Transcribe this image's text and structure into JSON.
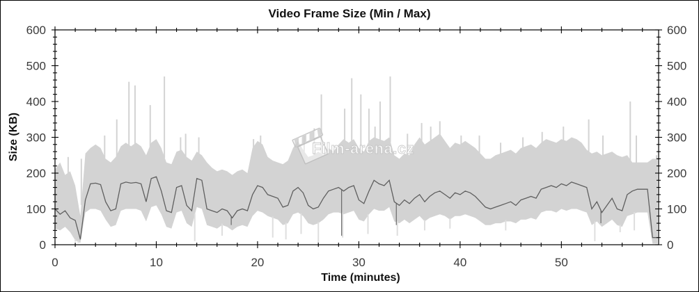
{
  "title": "Video Frame Size (Min / Max)",
  "watermark": {
    "text": "Film-arena.cz",
    "icon": "clapperboard-icon"
  },
  "colors": {
    "band": "#d3d3d3",
    "min_needle": "#dedede",
    "avg_line": "#5f5f5f",
    "axis": "#000000",
    "tick_label": "#3a3a3a",
    "watermark_stroke": "#c3c3c3"
  },
  "chart_data": {
    "type": "area",
    "title": "Video Frame Size (Min / Max)",
    "xlabel": "Time (minutes)",
    "ylabel": "Size (KB)",
    "xlim": [
      0,
      59.6
    ],
    "ylim": [
      0,
      600
    ],
    "x_major_ticks": [
      0,
      10,
      20,
      30,
      40,
      50
    ],
    "x_minor_step": 2,
    "y_major_ticks": [
      0,
      100,
      200,
      300,
      400,
      500,
      600
    ],
    "y_minor_step": 20,
    "grid": false,
    "legend": "none",
    "x": {
      "start": 0,
      "step": 0.5,
      "count": 120
    },
    "series": [
      {
        "name": "min",
        "values": [
          45,
          40,
          50,
          35,
          12,
          5,
          90,
          100,
          100,
          95,
          70,
          50,
          55,
          95,
          100,
          100,
          100,
          95,
          65,
          105,
          110,
          85,
          50,
          45,
          90,
          95,
          60,
          50,
          105,
          100,
          55,
          50,
          45,
          55,
          50,
          40,
          50,
          55,
          50,
          80,
          95,
          90,
          80,
          75,
          70,
          55,
          60,
          85,
          90,
          80,
          60,
          55,
          60,
          70,
          85,
          90,
          90,
          85,
          90,
          95,
          70,
          65,
          85,
          100,
          95,
          95,
          105,
          65,
          60,
          70,
          60,
          70,
          80,
          65,
          75,
          80,
          85,
          80,
          70,
          80,
          80,
          85,
          80,
          75,
          65,
          55,
          55,
          60,
          60,
          65,
          65,
          60,
          70,
          70,
          75,
          70,
          90,
          95,
          95,
          90,
          100,
          95,
          100,
          100,
          95,
          90,
          55,
          65,
          50,
          60,
          70,
          55,
          50,
          80,
          85,
          90,
          90,
          90,
          3,
          3
        ]
      },
      {
        "name": "avg",
        "values": [
          100,
          85,
          95,
          75,
          68,
          15,
          125,
          170,
          172,
          168,
          120,
          95,
          100,
          170,
          175,
          172,
          174,
          170,
          120,
          185,
          190,
          150,
          95,
          90,
          160,
          165,
          110,
          95,
          185,
          180,
          100,
          95,
          90,
          100,
          95,
          75,
          95,
          100,
          95,
          140,
          165,
          160,
          140,
          135,
          130,
          105,
          110,
          150,
          160,
          145,
          110,
          100,
          105,
          130,
          150,
          155,
          160,
          150,
          160,
          165,
          125,
          115,
          150,
          180,
          170,
          165,
          180,
          120,
          110,
          125,
          115,
          130,
          140,
          120,
          135,
          145,
          150,
          140,
          130,
          145,
          140,
          150,
          145,
          135,
          120,
          105,
          100,
          105,
          110,
          115,
          120,
          110,
          125,
          130,
          135,
          130,
          155,
          160,
          165,
          160,
          170,
          165,
          175,
          170,
          165,
          160,
          100,
          120,
          90,
          110,
          130,
          100,
          95,
          140,
          150,
          155,
          155,
          155,
          20,
          20
        ]
      },
      {
        "name": "max",
        "values": [
          210,
          230,
          195,
          205,
          165,
          80,
          255,
          270,
          280,
          270,
          240,
          230,
          245,
          275,
          285,
          275,
          285,
          275,
          250,
          285,
          295,
          270,
          230,
          225,
          260,
          265,
          245,
          235,
          260,
          250,
          230,
          215,
          205,
          210,
          205,
          195,
          205,
          210,
          200,
          270,
          290,
          280,
          245,
          235,
          230,
          225,
          235,
          270,
          290,
          265,
          245,
          250,
          260,
          250,
          270,
          260,
          280,
          295,
          285,
          295,
          270,
          260,
          290,
          300,
          295,
          290,
          300,
          250,
          240,
          255,
          250,
          280,
          300,
          280,
          290,
          300,
          310,
          290,
          270,
          285,
          280,
          290,
          280,
          270,
          255,
          240,
          240,
          250,
          255,
          260,
          265,
          255,
          270,
          275,
          280,
          270,
          285,
          295,
          290,
          285,
          295,
          290,
          300,
          295,
          285,
          265,
          255,
          260,
          250,
          255,
          260,
          250,
          245,
          250,
          230,
          230,
          230,
          230,
          240,
          240
        ]
      }
    ],
    "max_spikes": [
      [
        1.3,
        245
      ],
      [
        2.6,
        240
      ],
      [
        4.9,
        305
      ],
      [
        6.1,
        350
      ],
      [
        7.3,
        455
      ],
      [
        7.9,
        445
      ],
      [
        9.4,
        390
      ],
      [
        10.8,
        470
      ],
      [
        12.4,
        300
      ],
      [
        12.9,
        310
      ],
      [
        14.2,
        300
      ],
      [
        19.6,
        295
      ],
      [
        20.3,
        305
      ],
      [
        24.6,
        305
      ],
      [
        25.6,
        325
      ],
      [
        26.3,
        420
      ],
      [
        28.6,
        380
      ],
      [
        29.3,
        465
      ],
      [
        30.2,
        420
      ],
      [
        31.0,
        380
      ],
      [
        31.6,
        330
      ],
      [
        32.1,
        400
      ],
      [
        33.1,
        470
      ],
      [
        34.8,
        310
      ],
      [
        36.2,
        340
      ],
      [
        37.1,
        330
      ],
      [
        38.0,
        345
      ],
      [
        40.1,
        305
      ],
      [
        41.9,
        305
      ],
      [
        44.0,
        285
      ],
      [
        46.2,
        300
      ],
      [
        48.1,
        315
      ],
      [
        50.2,
        330
      ],
      [
        52.7,
        350
      ],
      [
        54.1,
        305
      ],
      [
        56.8,
        400
      ],
      [
        57.4,
        305
      ],
      [
        59.4,
        250
      ]
    ],
    "min_spikes": [
      [
        2.0,
        8
      ],
      [
        2.3,
        5
      ],
      [
        13.8,
        10
      ],
      [
        16.5,
        25
      ],
      [
        21.5,
        20
      ],
      [
        22.8,
        15
      ],
      [
        24.3,
        30
      ],
      [
        26.0,
        5
      ],
      [
        28.4,
        20
      ],
      [
        30.9,
        30
      ],
      [
        33.8,
        25
      ],
      [
        36.5,
        40
      ],
      [
        39.0,
        45
      ],
      [
        44.5,
        40
      ],
      [
        53.3,
        10
      ],
      [
        55.8,
        35
      ],
      [
        57.2,
        40
      ]
    ],
    "avg_dips": [
      [
        17.4,
        55
      ],
      [
        28.3,
        25
      ],
      [
        33.7,
        55
      ],
      [
        53.9,
        60
      ]
    ]
  }
}
